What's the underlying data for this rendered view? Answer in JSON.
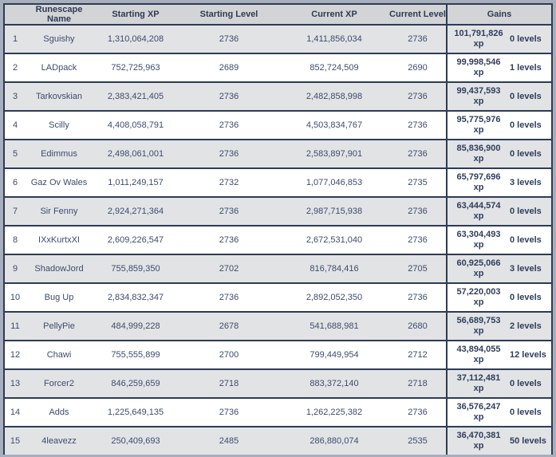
{
  "colors": {
    "outer_bg": "#a8aebb",
    "header_bg": "#d3d4d6",
    "row_alt_bg": "#e2e3e5",
    "row_bg": "#ffffff",
    "border_navy": "#2e3b55",
    "text_navy": "#3d4c6e",
    "text_bold_navy": "#2f3e5d"
  },
  "table": {
    "gains_unit": "xp",
    "columns": [
      {
        "id": "rank",
        "label": ""
      },
      {
        "id": "name",
        "label": "Runescape Name"
      },
      {
        "id": "starting_xp",
        "label": "Starting XP"
      },
      {
        "id": "starting_level",
        "label": "Starting Level"
      },
      {
        "id": "current_xp",
        "label": "Current XP"
      },
      {
        "id": "current_level",
        "label": "Current Level"
      },
      {
        "id": "gains",
        "label": "Gains"
      }
    ],
    "rows": [
      {
        "rank": "1",
        "name": "Sguishy",
        "starting_xp": "1,310,064,208",
        "starting_level": "2736",
        "current_xp": "1,411,856,034",
        "current_level": "2736",
        "gains_xp": "101,791,826",
        "gains_levels": "0 levels"
      },
      {
        "rank": "2",
        "name": "LADpack",
        "starting_xp": "752,725,963",
        "starting_level": "2689",
        "current_xp": "852,724,509",
        "current_level": "2690",
        "gains_xp": "99,998,546",
        "gains_levels": "1 levels"
      },
      {
        "rank": "3",
        "name": "Tarkovskian",
        "starting_xp": "2,383,421,405",
        "starting_level": "2736",
        "current_xp": "2,482,858,998",
        "current_level": "2736",
        "gains_xp": "99,437,593",
        "gains_levels": "0 levels"
      },
      {
        "rank": "4",
        "name": "Scilly",
        "starting_xp": "4,408,058,791",
        "starting_level": "2736",
        "current_xp": "4,503,834,767",
        "current_level": "2736",
        "gains_xp": "95,775,976",
        "gains_levels": "0 levels"
      },
      {
        "rank": "5",
        "name": "Edimmus",
        "starting_xp": "2,498,061,001",
        "starting_level": "2736",
        "current_xp": "2,583,897,901",
        "current_level": "2736",
        "gains_xp": "85,836,900",
        "gains_levels": "0 levels"
      },
      {
        "rank": "6",
        "name": "Gaz Ov Wales",
        "starting_xp": "1,011,249,157",
        "starting_level": "2732",
        "current_xp": "1,077,046,853",
        "current_level": "2735",
        "gains_xp": "65,797,696",
        "gains_levels": "3 levels"
      },
      {
        "rank": "7",
        "name": "Sir Fenny",
        "starting_xp": "2,924,271,364",
        "starting_level": "2736",
        "current_xp": "2,987,715,938",
        "current_level": "2736",
        "gains_xp": "63,444,574",
        "gains_levels": "0 levels"
      },
      {
        "rank": "8",
        "name": "IXxKurtxXI",
        "starting_xp": "2,609,226,547",
        "starting_level": "2736",
        "current_xp": "2,672,531,040",
        "current_level": "2736",
        "gains_xp": "63,304,493",
        "gains_levels": "0 levels"
      },
      {
        "rank": "9",
        "name": "ShadowJord",
        "starting_xp": "755,859,350",
        "starting_level": "2702",
        "current_xp": "816,784,416",
        "current_level": "2705",
        "gains_xp": "60,925,066",
        "gains_levels": "3 levels"
      },
      {
        "rank": "10",
        "name": "Bug Up",
        "starting_xp": "2,834,832,347",
        "starting_level": "2736",
        "current_xp": "2,892,052,350",
        "current_level": "2736",
        "gains_xp": "57,220,003",
        "gains_levels": "0 levels"
      },
      {
        "rank": "11",
        "name": "PellyPie",
        "starting_xp": "484,999,228",
        "starting_level": "2678",
        "current_xp": "541,688,981",
        "current_level": "2680",
        "gains_xp": "56,689,753",
        "gains_levels": "2 levels"
      },
      {
        "rank": "12",
        "name": "Chawi",
        "starting_xp": "755,555,899",
        "starting_level": "2700",
        "current_xp": "799,449,954",
        "current_level": "2712",
        "gains_xp": "43,894,055",
        "gains_levels": "12 levels"
      },
      {
        "rank": "13",
        "name": "Forcer2",
        "starting_xp": "846,259,659",
        "starting_level": "2718",
        "current_xp": "883,372,140",
        "current_level": "2718",
        "gains_xp": "37,112,481",
        "gains_levels": "0 levels"
      },
      {
        "rank": "14",
        "name": "Adds",
        "starting_xp": "1,225,649,135",
        "starting_level": "2736",
        "current_xp": "1,262,225,382",
        "current_level": "2736",
        "gains_xp": "36,576,247",
        "gains_levels": "0 levels"
      },
      {
        "rank": "15",
        "name": "4leavezz",
        "starting_xp": "250,409,693",
        "starting_level": "2485",
        "current_xp": "286,880,074",
        "current_level": "2535",
        "gains_xp": "36,470,381",
        "gains_levels": "50 levels"
      }
    ]
  }
}
